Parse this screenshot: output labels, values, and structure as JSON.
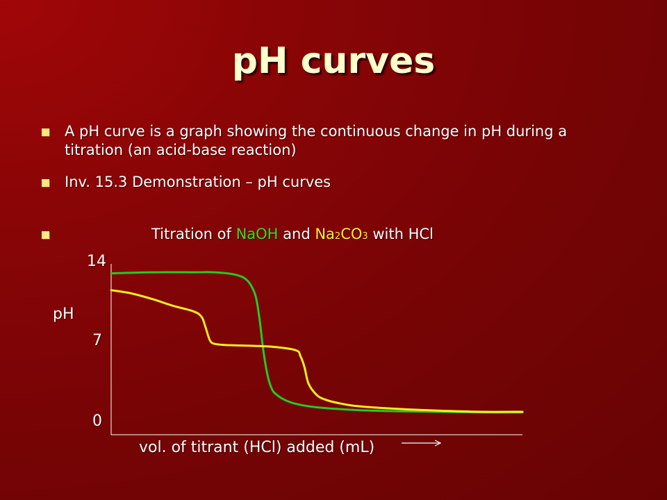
{
  "slide": {
    "title": "pH curves",
    "bullets": [
      "A pH curve is a graph showing the continuous change in pH during a titration (an acid-base reaction)",
      "Inv. 15.3 Demonstration – pH curves"
    ],
    "chart_title": {
      "prefix": "Titration of ",
      "series1": "NaOH",
      "mid": " and ",
      "series2_main": "Na",
      "series2_sub1": "2",
      "series2_mid": "CO",
      "series2_sub2": "3",
      "suffix": " with HCl"
    }
  },
  "chart_data": {
    "type": "line",
    "ylabel": "pH",
    "xlabel": "vol. of titrant (HCl) added (mL)",
    "y_ticks": [
      "14",
      "7",
      "0"
    ],
    "ylim": [
      0,
      14
    ],
    "xlim": [
      0,
      100
    ],
    "grid": false,
    "series": [
      {
        "name": "NaOH",
        "color": "#22cc22",
        "x": [
          0,
          10,
          20,
          25,
          30,
          33,
          35,
          36,
          37,
          38,
          39,
          40,
          42,
          45,
          50,
          60,
          70,
          80,
          90,
          100
        ],
        "y": [
          12.9,
          13.0,
          13.0,
          13.0,
          12.8,
          12.3,
          11.0,
          9.0,
          6.0,
          3.8,
          2.6,
          2.1,
          1.6,
          1.2,
          0.9,
          0.65,
          0.55,
          0.5,
          0.45,
          0.45
        ]
      },
      {
        "name": "Na2CO3",
        "color": "#ffee22",
        "x": [
          0,
          5,
          10,
          15,
          20,
          22,
          23,
          24,
          25,
          27,
          30,
          35,
          40,
          45,
          46,
          47,
          48,
          50,
          52,
          55,
          60,
          70,
          80,
          90,
          100
        ],
        "y": [
          11.4,
          11.1,
          10.6,
          10.0,
          9.5,
          9.0,
          8.0,
          6.9,
          6.6,
          6.5,
          6.45,
          6.4,
          6.3,
          6.0,
          5.5,
          4.5,
          3.0,
          2.0,
          1.6,
          1.3,
          1.0,
          0.75,
          0.6,
          0.5,
          0.5
        ]
      }
    ]
  }
}
